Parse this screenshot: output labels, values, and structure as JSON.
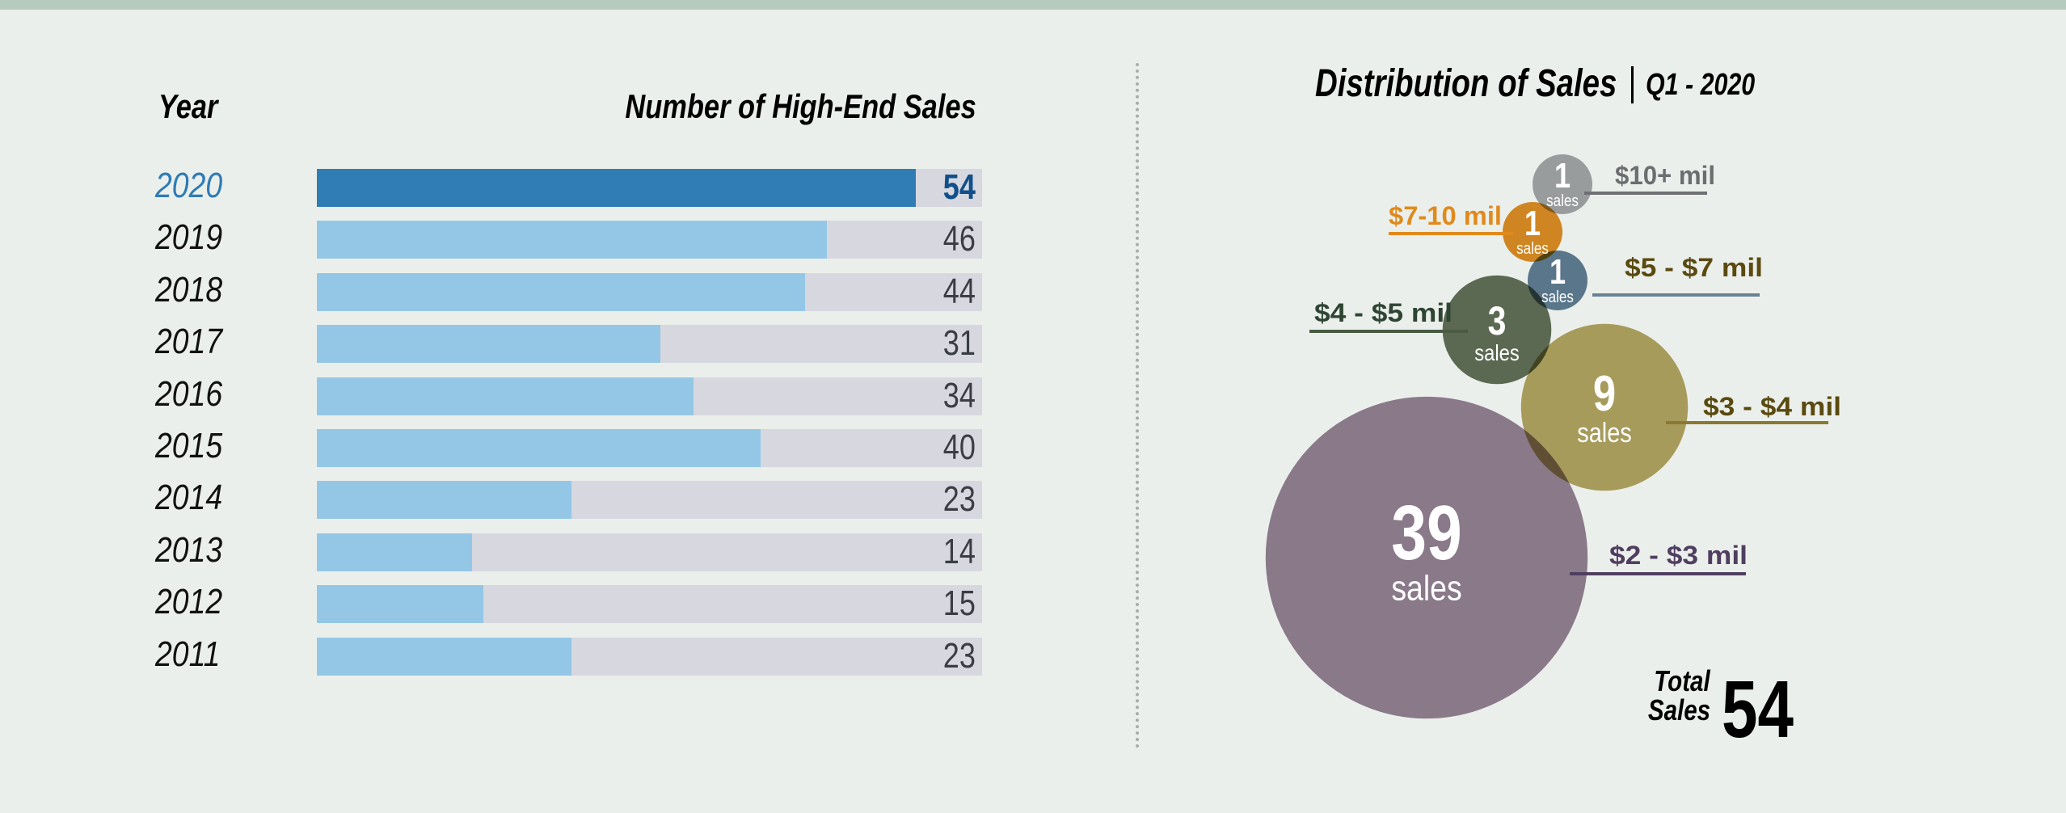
{
  "left_panel": {
    "year_header": "Year",
    "sales_header": "Number of High-End Sales"
  },
  "right_panel": {
    "title": "Distribution of Sales",
    "subtitle": "Q1 - 2020",
    "total_label_line1": "Total",
    "total_label_line2": "Sales",
    "total_value": "54"
  },
  "colors": {
    "highlight_bar": "#307db5",
    "bar": "#94c7e6",
    "track": "#d6d7df",
    "highlight_year": "#2f7bb5",
    "highlight_value": "#11508a"
  },
  "chart_data": [
    {
      "type": "bar",
      "orientation": "horizontal",
      "title": "Number of High-End Sales",
      "xlabel": "",
      "ylabel": "Year",
      "xlim": [
        0,
        60
      ],
      "categories": [
        "2020",
        "2019",
        "2018",
        "2017",
        "2016",
        "2015",
        "2014",
        "2013",
        "2012",
        "2011"
      ],
      "values": [
        54,
        46,
        44,
        31,
        34,
        40,
        23,
        14,
        15,
        23
      ],
      "highlight": "2020",
      "data_labels": true,
      "grid": false
    },
    {
      "type": "scatter",
      "subtype": "bubble",
      "title": "Distribution of Sales",
      "subtitle": "Q1 - 2020",
      "unit_label": "sales",
      "series": [
        {
          "name": "$10+ mil",
          "value": 1,
          "color": "#a2a4a8",
          "label_color": "#6b6d70",
          "line_color": "#6d6f72"
        },
        {
          "name": "$7-10 mil",
          "value": 1,
          "color": "#e08a1c",
          "label_color": "#e08a1c",
          "line_color": "#e08a1c"
        },
        {
          "name": "$5 - $7 mil",
          "value": 1,
          "color": "#5d7a93",
          "label_color": "#5a4a10",
          "line_color": "#6a8094"
        },
        {
          "name": "$4 - $5 mil",
          "value": 3,
          "color": "#5e6b54",
          "label_color": "#2f4533",
          "line_color": "#4a5a44"
        },
        {
          "name": "$3 - $4 mil",
          "value": 9,
          "color": "#b2a35e",
          "label_color": "#5a4a10",
          "line_color": "#8a7a30"
        },
        {
          "name": "$2 - $3 mil",
          "value": 39,
          "color": "#927d92",
          "label_color": "#503e60",
          "line_color": "#503e60"
        }
      ],
      "total": 54
    }
  ]
}
